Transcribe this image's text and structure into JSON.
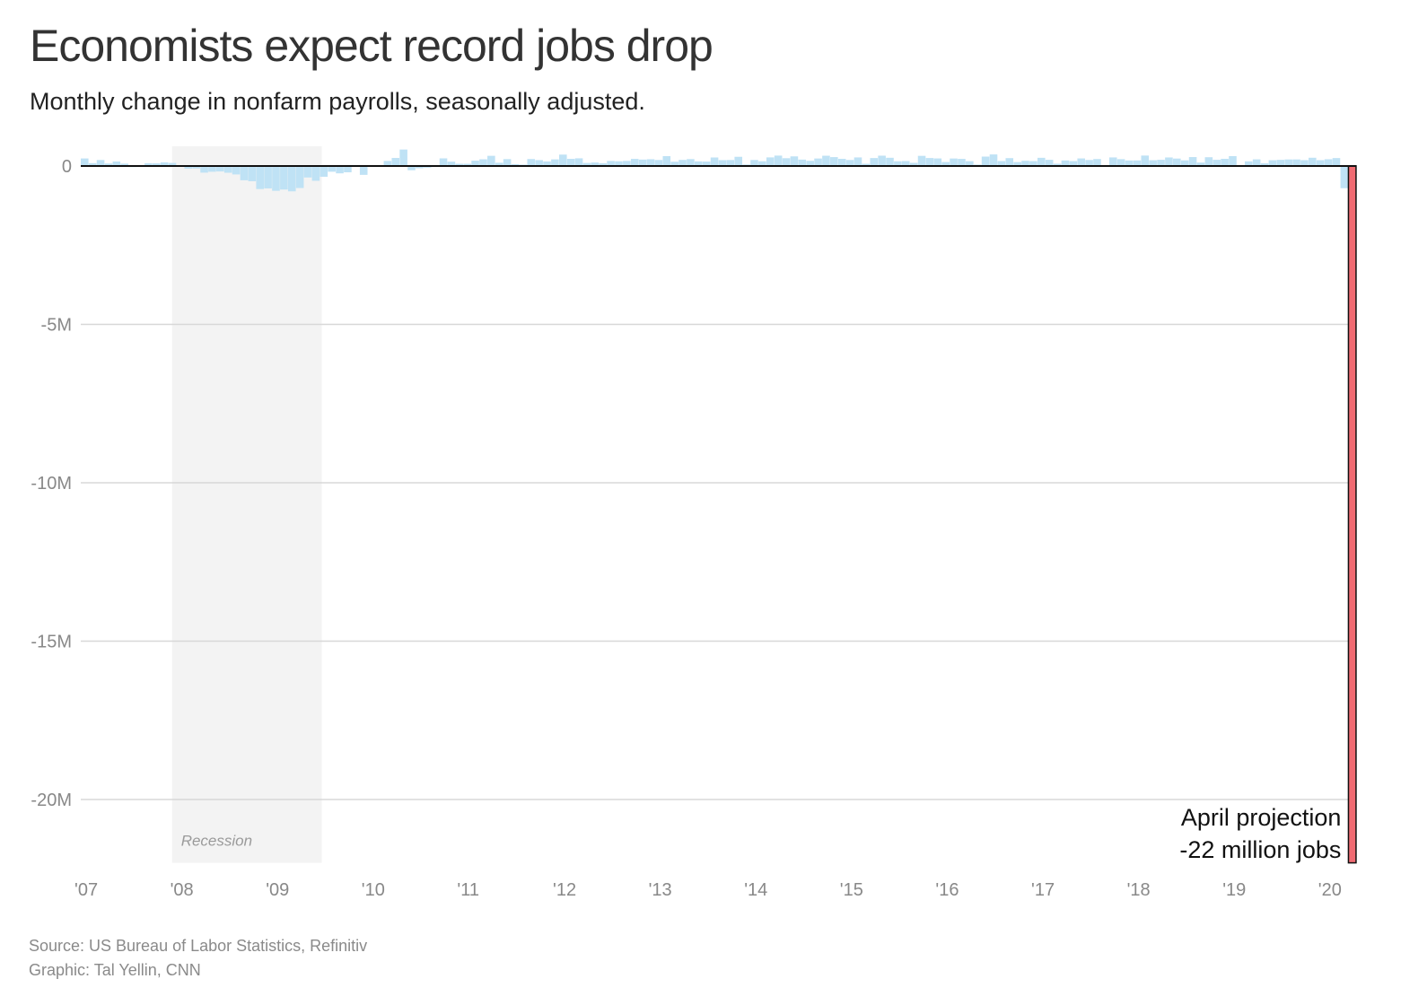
{
  "header": {
    "title": "Economists expect record jobs drop",
    "subtitle": "Monthly change in nonfarm payrolls, seasonally adjusted."
  },
  "footer": {
    "source": "Source: US Bureau of Labor Statistics, Refinitiv",
    "credit": "Graphic: Tal Yellin, CNN"
  },
  "colors": {
    "bar": "#bfe2f5",
    "projection": "#f06b72",
    "recession": "#f3f3f3",
    "grid": "#d8d8d8",
    "zero_line": "#111111"
  },
  "chart_data": {
    "type": "bar",
    "xlabel": "",
    "ylabel": "",
    "ylim": [
      -22000,
      600
    ],
    "y_unit": "thousands of jobs",
    "y_ticks": [
      {
        "value": 0,
        "label": "0"
      },
      {
        "value": -5000,
        "label": "-5M"
      },
      {
        "value": -10000,
        "label": "-10M"
      },
      {
        "value": -15000,
        "label": "-15M"
      },
      {
        "value": -20000,
        "label": "-20M"
      }
    ],
    "x_ticks": [
      "'07",
      "'08",
      "'09",
      "'10",
      "'11",
      "'12",
      "'13",
      "'14",
      "'15",
      "'16",
      "'17",
      "'18",
      "'19",
      "'20"
    ],
    "x_start": "2007-01",
    "grid": true,
    "recession": {
      "start": "2007-12",
      "end": "2009-06",
      "label": "Recession"
    },
    "series": [
      {
        "values": [
          238,
          90,
          189,
          79,
          143,
          75,
          -34,
          -20,
          88,
          84,
          114,
          97,
          17,
          -84,
          -78,
          -210,
          -182,
          -172,
          -213,
          -267,
          -450,
          -481,
          -727,
          -706,
          -784,
          -743,
          -800,
          -695,
          -362,
          -467,
          -339,
          -181,
          -232,
          -199,
          -7,
          -279,
          -20,
          -18,
          160,
          254,
          520,
          -133,
          -70,
          -51,
          -27,
          241,
          137,
          71,
          70,
          168,
          212,
          322,
          102,
          217,
          59,
          42,
          220,
          186,
          144,
          209,
          360,
          226,
          243,
          96,
          110,
          88,
          160,
          150,
          161,
          225,
          203,
          214,
          190,
          311,
          135,
          192,
          218,
          146,
          140,
          269,
          185,
          189,
          291,
          45,
          190,
          151,
          272,
          329,
          246,
          304,
          202,
          164,
          237,
          324,
          281,
          227,
          190,
          271,
          70,
          251,
          326,
          260,
          150,
          157,
          100,
          321,
          252,
          239,
          126,
          237,
          225,
          153,
          43,
          297,
          365,
          157,
          249,
          124,
          164,
          155,
          259,
          195,
          73,
          175,
          155,
          239,
          190,
          221,
          18,
          271,
          216,
          175,
          176,
          330,
          182,
          196,
          270,
          235,
          178,
          282,
          108,
          277,
          196,
          227,
          312,
          1,
          147,
          210,
          85,
          182,
          194,
          207,
          208,
          185,
          261,
          184,
          214,
          251,
          -701
        ]
      }
    ],
    "projection": {
      "month": "2020-04",
      "value": -22000,
      "label_line1": "April projection",
      "label_line2": "-22 million jobs"
    }
  }
}
